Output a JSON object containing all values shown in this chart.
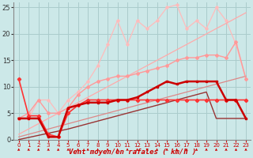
{
  "xlabel": "Vent moyen/en rafales ( km/h )",
  "xlim": [
    -0.5,
    23.5
  ],
  "ylim": [
    0,
    26
  ],
  "xticks": [
    0,
    1,
    2,
    3,
    4,
    5,
    6,
    7,
    8,
    9,
    10,
    11,
    12,
    13,
    14,
    15,
    16,
    17,
    18,
    19,
    20,
    21,
    22,
    23
  ],
  "yticks": [
    0,
    5,
    10,
    15,
    20,
    25
  ],
  "background_color": "#cce8e8",
  "grid_color": "#aacccc",
  "lines": [
    {
      "x": [
        0,
        1,
        2,
        3,
        4,
        5,
        6,
        7,
        8,
        9,
        10,
        11,
        12,
        13,
        14,
        15,
        16,
        17,
        18,
        19,
        20,
        21,
        22,
        23
      ],
      "y": [
        4,
        4,
        7.5,
        7.5,
        5,
        7.5,
        9,
        11,
        14,
        18,
        22.5,
        18,
        22.5,
        21,
        22.5,
        25,
        25.5,
        21,
        22.5,
        21,
        25,
        22.5,
        18,
        11.5
      ],
      "color": "#ffbbbb",
      "lw": 0.9,
      "marker": "D",
      "ms": 1.8,
      "zorder": 2
    },
    {
      "x": [
        0,
        1,
        2,
        3,
        4,
        5,
        6,
        7,
        8,
        9,
        10,
        11,
        12,
        13,
        14,
        15,
        16,
        17,
        18,
        19,
        20,
        21,
        22,
        23
      ],
      "y": [
        4,
        5,
        7.5,
        5,
        5,
        6,
        8.5,
        10,
        11,
        11.5,
        12,
        12,
        12.5,
        13,
        13.5,
        14,
        15,
        15.5,
        15.5,
        16,
        16,
        15.5,
        18.5,
        11.5
      ],
      "color": "#ff9999",
      "lw": 1.0,
      "marker": "D",
      "ms": 2.0,
      "zorder": 3
    },
    {
      "x": [
        0,
        1,
        2,
        3,
        4,
        5,
        6,
        7,
        8,
        9,
        10,
        11,
        12,
        13,
        14,
        15,
        16,
        17,
        18,
        19,
        20,
        21,
        22,
        23
      ],
      "y": [
        1,
        2,
        3,
        4,
        5,
        6,
        7,
        8,
        9,
        10,
        11,
        12,
        13,
        14,
        15,
        16,
        17,
        18,
        19,
        20,
        21,
        22,
        23,
        24
      ],
      "color": "#ffaaaa",
      "lw": 0.9,
      "marker": null,
      "ms": 0,
      "zorder": 2
    },
    {
      "x": [
        0,
        1,
        2,
        3,
        4,
        5,
        6,
        7,
        8,
        9,
        10,
        11,
        12,
        13,
        14,
        15,
        16,
        17,
        18,
        19,
        20,
        21,
        22,
        23
      ],
      "y": [
        0.5,
        1,
        1.5,
        2,
        2.5,
        3,
        3.5,
        4,
        4.5,
        5,
        5.5,
        6,
        6.5,
        7,
        7.5,
        8,
        8.5,
        9,
        9.5,
        10,
        10.5,
        11,
        11.5,
        12
      ],
      "color": "#dd8888",
      "lw": 0.9,
      "marker": null,
      "ms": 0,
      "zorder": 2
    },
    {
      "x": [
        0,
        1,
        2,
        3,
        4,
        5,
        6,
        7,
        8,
        9,
        10,
        11,
        12,
        13,
        14,
        15,
        16,
        17,
        18,
        19,
        20,
        21,
        22,
        23
      ],
      "y": [
        11.5,
        4.5,
        4.5,
        1,
        0.5,
        5,
        6.5,
        7.5,
        7.5,
        7.5,
        7.5,
        7.5,
        7.5,
        7.5,
        7.5,
        7.5,
        7.5,
        7.5,
        7.5,
        7.5,
        7.5,
        7.5,
        7.5,
        7.5
      ],
      "color": "#ff3333",
      "lw": 1.2,
      "marker": "D",
      "ms": 2.2,
      "zorder": 6
    },
    {
      "x": [
        0,
        1,
        2,
        3,
        4,
        5,
        6,
        7,
        8,
        9,
        10,
        11,
        12,
        13,
        14,
        15,
        16,
        17,
        18,
        19,
        20,
        21,
        22,
        23
      ],
      "y": [
        4,
        4,
        4,
        0.5,
        0.5,
        6,
        6.5,
        7,
        7,
        7,
        7.5,
        7.5,
        8,
        9,
        10,
        11,
        10.5,
        11,
        11,
        11,
        11,
        7.5,
        7.5,
        4
      ],
      "color": "#cc0000",
      "lw": 1.8,
      "marker": "s",
      "ms": 2.0,
      "zorder": 7
    },
    {
      "x": [
        0,
        1,
        2,
        3,
        4,
        5,
        6,
        7,
        8,
        9,
        10,
        11,
        12,
        13,
        14,
        15,
        16,
        17,
        18,
        19,
        20,
        21,
        22,
        23
      ],
      "y": [
        0,
        0.4,
        0.8,
        1.2,
        1.6,
        2,
        2.5,
        3,
        3.5,
        4,
        4.5,
        5,
        5.5,
        6,
        6.5,
        7,
        7.5,
        8,
        8.5,
        9,
        4,
        4,
        4,
        4
      ],
      "color": "#993333",
      "lw": 1.0,
      "marker": null,
      "ms": 0,
      "zorder": 3
    }
  ],
  "arrow_color": "#cc0000"
}
